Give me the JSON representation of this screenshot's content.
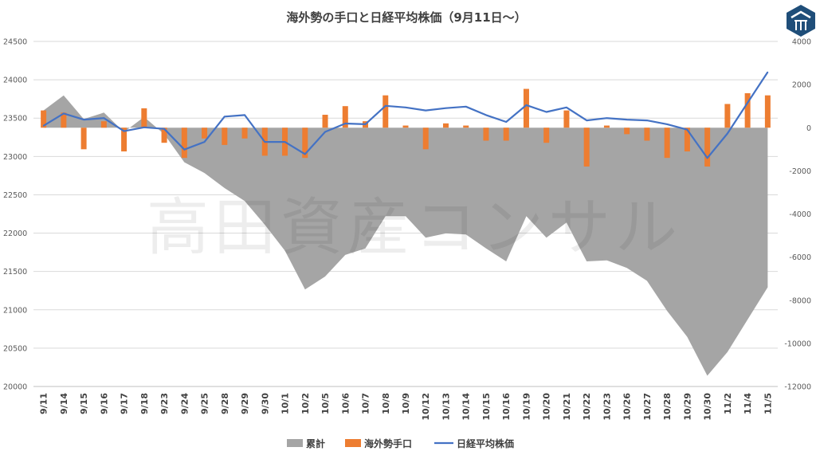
{
  "chart_data": {
    "type": "bar",
    "title": "海外勢の手口と日経平均株価（9月11日～）",
    "watermark": "高田資産コンサル",
    "categories": [
      "9/11",
      "9/14",
      "9/15",
      "9/16",
      "9/17",
      "9/18",
      "9/23",
      "9/24",
      "9/25",
      "9/28",
      "9/29",
      "9/30",
      "10/1",
      "10/2",
      "10/5",
      "10/6",
      "10/7",
      "10/8",
      "10/9",
      "10/12",
      "10/13",
      "10/14",
      "10/15",
      "10/16",
      "10/19",
      "10/20",
      "10/21",
      "10/22",
      "10/23",
      "10/26",
      "10/27",
      "10/28",
      "10/29",
      "10/30",
      "11/2",
      "11/4",
      "11/5"
    ],
    "left_axis": {
      "min": 20000,
      "max": 24500,
      "step": 500,
      "ticks": [
        "20000",
        "20500",
        "21000",
        "21500",
        "22000",
        "22500",
        "23000",
        "23500",
        "24000",
        "24500"
      ]
    },
    "right_axis": {
      "min": -12000,
      "max": 4000,
      "step": 2000,
      "ticks": [
        "-12000",
        "-10000",
        "-8000",
        "-6000",
        "-4000",
        "-2000",
        "0",
        "2000",
        "4000"
      ]
    },
    "grid": true,
    "legend_position": "bottom",
    "series": [
      {
        "name": "累計",
        "type": "area",
        "axis": "right",
        "color": "#a5a5a5",
        "values": [
          800,
          1500,
          400,
          700,
          -200,
          500,
          -300,
          -1600,
          -2100,
          -2800,
          -3400,
          -4500,
          -5700,
          -7500,
          -6900,
          -5900,
          -5600,
          -4100,
          -4100,
          -5100,
          -4900,
          -4950,
          -5600,
          -6200,
          -4100,
          -5100,
          -4400,
          -6200,
          -6150,
          -6500,
          -7100,
          -8500,
          -9700,
          -11500,
          -10400,
          -8900,
          -7400
        ]
      },
      {
        "name": "海外勢手口",
        "type": "bar",
        "axis": "right",
        "color": "#ed7d31",
        "values": [
          800,
          700,
          -1000,
          300,
          -1100,
          900,
          -700,
          -1400,
          -500,
          -800,
          -500,
          -1300,
          -1300,
          -1400,
          600,
          1000,
          300,
          1500,
          100,
          -1000,
          200,
          100,
          -600,
          -600,
          1800,
          -700,
          800,
          -1800,
          100,
          -300,
          -600,
          -1400,
          -1100,
          -1800,
          1100,
          1600,
          1500
        ]
      },
      {
        "name": "日経平均株価",
        "type": "line",
        "axis": "left",
        "color": "#4472c4",
        "values": [
          23400,
          23560,
          23480,
          23500,
          23330,
          23380,
          23360,
          23090,
          23190,
          23520,
          23540,
          23190,
          23190,
          23030,
          23320,
          23430,
          23420,
          23660,
          23640,
          23600,
          23630,
          23650,
          23540,
          23450,
          23670,
          23580,
          23640,
          23470,
          23500,
          23480,
          23470,
          23420,
          23350,
          22980,
          23300,
          23700,
          24100
        ]
      }
    ]
  }
}
